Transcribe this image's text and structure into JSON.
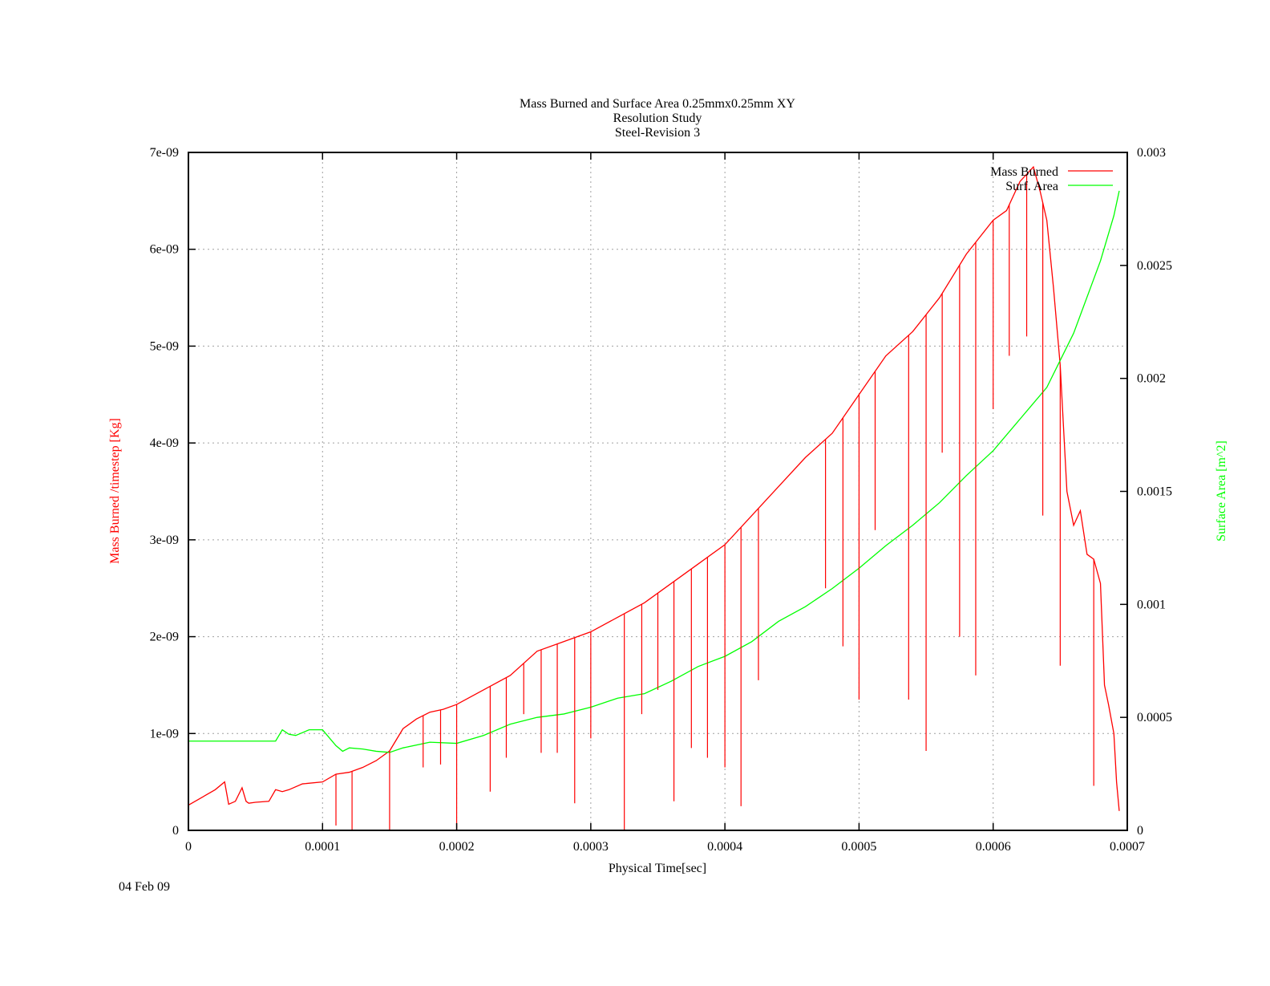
{
  "chart_data": {
    "type": "line",
    "title": [
      "Mass Burned and Surface Area 0.25mmx0.25mm XY",
      "Resolution Study",
      "Steel-Revision 3"
    ],
    "xlabel": "Physical Time[sec]",
    "ylabel": "Mass Burned /timestep  [Kg]",
    "y2label": "Surface Area [m^2]",
    "date": "04 Feb 09",
    "xlim": [
      0,
      0.0007
    ],
    "ylim": [
      0,
      7e-09
    ],
    "y2lim": [
      0,
      0.003
    ],
    "grid": true,
    "legend_position": "top-right",
    "x_ticks": [
      {
        "value": 0,
        "label": "0"
      },
      {
        "value": 0.0001,
        "label": "0.0001"
      },
      {
        "value": 0.0002,
        "label": "0.0002"
      },
      {
        "value": 0.0003,
        "label": "0.0003"
      },
      {
        "value": 0.0004,
        "label": "0.0004"
      },
      {
        "value": 0.0005,
        "label": "0.0005"
      },
      {
        "value": 0.0006,
        "label": "0.0006"
      },
      {
        "value": 0.0007,
        "label": "0.0007"
      }
    ],
    "y_ticks": [
      {
        "value": 0,
        "label": "0"
      },
      {
        "value": 1e-09,
        "label": "1e-09"
      },
      {
        "value": 2e-09,
        "label": "2e-09"
      },
      {
        "value": 3e-09,
        "label": "3e-09"
      },
      {
        "value": 4e-09,
        "label": "4e-09"
      },
      {
        "value": 5e-09,
        "label": "5e-09"
      },
      {
        "value": 6e-09,
        "label": "6e-09"
      },
      {
        "value": 7e-09,
        "label": "7e-09"
      }
    ],
    "y2_ticks": [
      {
        "value": 0,
        "label": "0"
      },
      {
        "value": 0.0005,
        "label": "0.0005"
      },
      {
        "value": 0.001,
        "label": "0.001"
      },
      {
        "value": 0.0015,
        "label": "0.0015"
      },
      {
        "value": 0.002,
        "label": "0.002"
      },
      {
        "value": 0.0025,
        "label": "0.0025"
      },
      {
        "value": 0.003,
        "label": "0.003"
      }
    ],
    "series": [
      {
        "name": "Mass Burned",
        "axis": "y",
        "color": "#ff0000",
        "x": [
          0,
          2e-05,
          2.7e-05,
          3e-05,
          3.5e-05,
          4e-05,
          4.3e-05,
          4.5e-05,
          5e-05,
          6e-05,
          6.5e-05,
          7e-05,
          7.5e-05,
          8.5e-05,
          0.0001,
          0.00011,
          0.00012,
          0.00013,
          0.00014,
          0.00015,
          0.00016,
          0.00017,
          0.00018,
          0.00019,
          0.0002,
          0.00022,
          0.00024,
          0.00026,
          0.00028,
          0.0003,
          0.00032,
          0.00034,
          0.00036,
          0.00038,
          0.0004,
          0.00042,
          0.00044,
          0.00046,
          0.00048,
          0.0005,
          0.00052,
          0.00054,
          0.00056,
          0.00058,
          0.0006,
          0.00061,
          0.00062,
          0.00063,
          0.000635,
          0.00064,
          0.000645,
          0.00065,
          0.000655,
          0.00066,
          0.000665,
          0.00067,
          0.000675,
          0.00068,
          0.000683,
          0.000686,
          0.00069,
          0.000692,
          0.000694
        ],
        "y": [
          2.6e-10,
          4.2e-10,
          5e-10,
          2.7e-10,
          3e-10,
          4.4e-10,
          3e-10,
          2.8e-10,
          2.9e-10,
          3e-10,
          4.2e-10,
          4e-10,
          4.2e-10,
          4.8e-10,
          5e-10,
          5.8e-10,
          6e-10,
          6.5e-10,
          7.2e-10,
          8.2e-10,
          1.05e-09,
          1.15e-09,
          1.22e-09,
          1.25e-09,
          1.3e-09,
          1.45e-09,
          1.6e-09,
          1.85e-09,
          1.95e-09,
          2.05e-09,
          2.2e-09,
          2.35e-09,
          2.55e-09,
          2.75e-09,
          2.95e-09,
          3.25e-09,
          3.55e-09,
          3.85e-09,
          4.1e-09,
          4.5e-09,
          4.9e-09,
          5.15e-09,
          5.5e-09,
          5.95e-09,
          6.3e-09,
          6.4e-09,
          6.7e-09,
          6.85e-09,
          6.6e-09,
          6.3e-09,
          5.6e-09,
          4.8e-09,
          3.5e-09,
          3.15e-09,
          3.3e-09,
          2.85e-09,
          2.8e-09,
          2.55e-09,
          1.5e-09,
          1.3e-09,
          1e-09,
          5e-10,
          2e-10
        ]
      },
      {
        "name": "Surf. Area",
        "axis": "y2",
        "color": "#00ff00",
        "x": [
          0,
          2e-05,
          4e-05,
          6.5e-05,
          7e-05,
          7.5e-05,
          8e-05,
          9e-05,
          0.0001,
          0.00011,
          0.000115,
          0.00012,
          0.00013,
          0.00014,
          0.00015,
          0.00016,
          0.00018,
          0.0002,
          0.00022,
          0.00024,
          0.00026,
          0.00028,
          0.0003,
          0.00032,
          0.00034,
          0.00036,
          0.00038,
          0.0004,
          0.00042,
          0.00044,
          0.00046,
          0.00048,
          0.0005,
          0.00052,
          0.00054,
          0.00056,
          0.00058,
          0.0006,
          0.00062,
          0.00064,
          0.00066,
          0.00068,
          0.00069,
          0.000694
        ],
        "y": [
          0.000395,
          0.000395,
          0.000395,
          0.000395,
          0.000445,
          0.000425,
          0.00042,
          0.000445,
          0.000445,
          0.000375,
          0.00035,
          0.000365,
          0.00036,
          0.00035,
          0.000345,
          0.000365,
          0.00039,
          0.000385,
          0.00042,
          0.00047,
          0.0005,
          0.000515,
          0.000545,
          0.000585,
          0.000605,
          0.00066,
          0.000725,
          0.00077,
          0.000835,
          0.000925,
          0.00099,
          0.00107,
          0.00116,
          0.00126,
          0.00135,
          0.00145,
          0.00157,
          0.00168,
          0.00182,
          0.00196,
          0.0022,
          0.00252,
          0.00272,
          0.00283
        ]
      }
    ],
    "spikes": {
      "series": "Mass Burned",
      "x": [
        0.00011,
        0.000122,
        0.00015,
        0.000175,
        0.000188,
        0.0002,
        0.000225,
        0.000237,
        0.00025,
        0.000263,
        0.000275,
        0.000288,
        0.0003,
        0.000325,
        0.000338,
        0.00035,
        0.000362,
        0.000375,
        0.000387,
        0.0004,
        0.000412,
        0.000425,
        0.000475,
        0.000488,
        0.0005,
        0.000512,
        0.000537,
        0.00055,
        0.000562,
        0.000575,
        0.000587,
        0.0006,
        0.000612,
        0.000625,
        0.000637,
        0.00065,
        0.000675
      ],
      "y": [
        5e-11,
        0,
        0,
        6.5e-10,
        6.8e-10,
        0,
        4e-10,
        7.5e-10,
        1.2e-09,
        8e-10,
        8e-10,
        2.8e-10,
        9.5e-10,
        0,
        1.2e-09,
        1.45e-09,
        3e-10,
        8.5e-10,
        7.5e-10,
        6.5e-10,
        2.5e-10,
        1.55e-09,
        2.5e-09,
        1.9e-09,
        1.35e-09,
        3.1e-09,
        1.35e-09,
        8.2e-10,
        3.9e-09,
        2e-09,
        1.6e-09,
        4.35e-09,
        4.9e-09,
        5.1e-09,
        3.25e-09,
        1.7e-09,
        4.6e-10
      ]
    }
  }
}
